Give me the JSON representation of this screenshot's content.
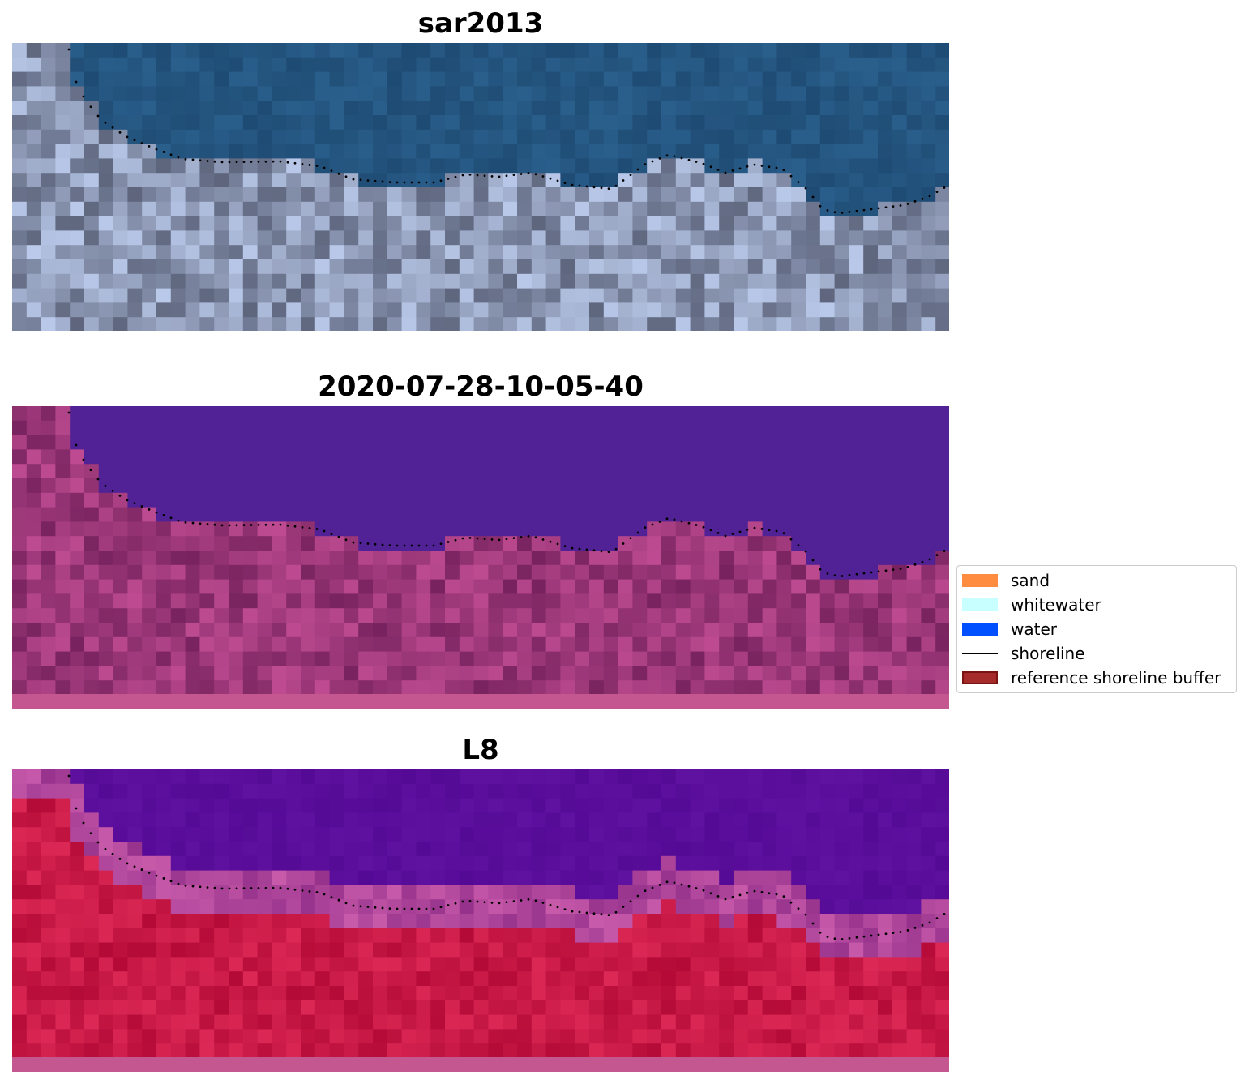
{
  "panels": [
    {
      "title": "sar2013",
      "palette": "rgb"
    },
    {
      "title": "2020-07-28-10-05-40",
      "palette": "classified"
    },
    {
      "title": "L8",
      "palette": "falsecolor"
    }
  ],
  "legend": [
    {
      "label": "sand",
      "color": "#ff8c3f",
      "kind": "patch"
    },
    {
      "label": "whitewater",
      "color": "#c8ffff",
      "kind": "patch"
    },
    {
      "label": "water",
      "color": "#0050ff",
      "kind": "patch"
    },
    {
      "label": "shoreline",
      "color": "#000000",
      "kind": "line"
    },
    {
      "label": "reference shoreline buffer",
      "color": "#a52a2a",
      "kind": "patch"
    }
  ],
  "colors": {
    "sea_rgb": "#225583",
    "sea_classified": "#512295",
    "sea_falsecolor": "#5a0f99",
    "land_classified": "#8c3a7c",
    "land_falsecolor": "#c8174a",
    "bottom_band": "#c4578f",
    "shoreline_dots": "#000000"
  }
}
